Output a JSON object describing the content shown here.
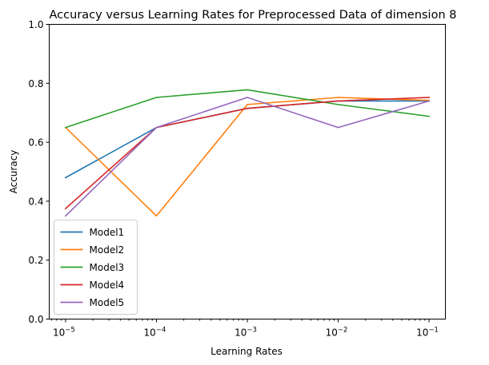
{
  "chart_data": {
    "type": "line",
    "title": "Accuracy versus Learning Rates for Preprocessed Data of dimension 8",
    "xlabel": "Learning Rates",
    "ylabel": "Accuracy",
    "xscale": "log",
    "x": [
      1e-05,
      0.0001,
      0.001,
      0.01,
      0.1
    ],
    "x_tick_labels": [
      {
        "base": "10",
        "exp": "−5"
      },
      {
        "base": "10",
        "exp": "−4"
      },
      {
        "base": "10",
        "exp": "−3"
      },
      {
        "base": "10",
        "exp": "−2"
      },
      {
        "base": "10",
        "exp": "−1"
      }
    ],
    "ylim": [
      0.0,
      1.0
    ],
    "y_ticks": [
      0.0,
      0.2,
      0.4,
      0.6,
      0.8,
      1.0
    ],
    "y_tick_labels": [
      "0.0",
      "0.2",
      "0.4",
      "0.6",
      "0.8",
      "1.0"
    ],
    "grid": false,
    "legend_position": "lower-left",
    "series": [
      {
        "name": "Model1",
        "color": "#1f77b4",
        "values": [
          0.48,
          0.65,
          0.715,
          0.74,
          0.74
        ]
      },
      {
        "name": "Model2",
        "color": "#ff7f0e",
        "values": [
          0.65,
          0.35,
          0.728,
          0.752,
          0.742
        ]
      },
      {
        "name": "Model3",
        "color": "#2ca02c",
        "values": [
          0.65,
          0.752,
          0.778,
          0.728,
          0.688
        ]
      },
      {
        "name": "Model4",
        "color": "#d62728",
        "values": [
          0.375,
          0.65,
          0.715,
          0.74,
          0.752
        ]
      },
      {
        "name": "Model5",
        "color": "#9467bd",
        "values": [
          0.35,
          0.65,
          0.752,
          0.65,
          0.74
        ]
      }
    ]
  }
}
